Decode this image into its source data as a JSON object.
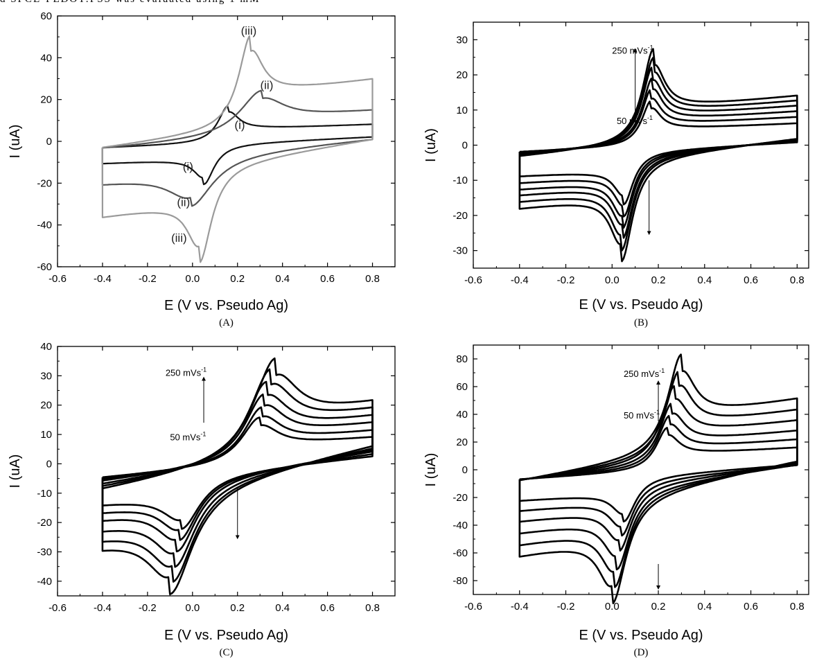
{
  "page_text": {
    "top_fragment": "d SPCE-PEDOT:PSS was evaluated using 1 mM"
  },
  "chart_data": [
    {
      "panel": "A",
      "caption": "(A)",
      "type": "line",
      "xlabel": "E (V vs. Pseudo Ag)",
      "ylabel": "I (uA)",
      "xlim": [
        -0.6,
        0.9
      ],
      "ylim": [
        -60,
        60
      ],
      "xticks": [
        -0.6,
        -0.4,
        -0.2,
        0.0,
        0.2,
        0.4,
        0.6,
        0.8
      ],
      "xtick_labels": [
        "-0.6",
        "-0.4",
        "-0.2",
        "0.0",
        "0.2",
        "0.4",
        "0.6",
        "0.8"
      ],
      "yticks": [
        -60,
        -40,
        -20,
        0,
        20,
        40,
        60
      ],
      "ytick_labels": [
        "-60",
        "-40",
        "-20",
        "0",
        "20",
        "40",
        "60"
      ],
      "series": [
        {
          "name": "(i)",
          "color": "#111111",
          "e_pa": 0.16,
          "e_pc": 0.05,
          "ip_a": 18,
          "ip_c": -19,
          "width": 0.055,
          "i_start": -7,
          "i_end": 4,
          "cap": 0.0,
          "slope": 9
        },
        {
          "name": "(ii)",
          "color": "#555555",
          "e_pa": 0.31,
          "e_pc": -0.01,
          "ip_a": 22,
          "ip_c": -24,
          "width": 0.12,
          "i_start": -15,
          "i_end": 8,
          "cap": 3,
          "slope": 10
        },
        {
          "name": "(iii)",
          "color": "#9a9a9a",
          "e_pa": 0.26,
          "e_pc": 0.03,
          "ip_a": 45,
          "ip_c": -46,
          "width": 0.065,
          "i_start": -23,
          "i_end": 15,
          "cap": 7,
          "slope": 12
        }
      ],
      "annotations": [
        {
          "text": "(iii)",
          "x": 0.25,
          "y": 51
        },
        {
          "text": "(ii)",
          "x": 0.33,
          "y": 25
        },
        {
          "text": "(i)",
          "x": 0.21,
          "y": 6
        },
        {
          "text": "(i)",
          "x": -0.02,
          "y": -14
        },
        {
          "text": "(ii)",
          "x": -0.04,
          "y": -31
        },
        {
          "text": "(iii)",
          "x": -0.06,
          "y": -48
        }
      ]
    },
    {
      "panel": "B",
      "caption": "(B)",
      "type": "line",
      "xlabel": "E (V vs. Pseudo Ag)",
      "ylabel": "I (uA)",
      "xlim": [
        -0.6,
        0.85
      ],
      "ylim": [
        -35,
        35
      ],
      "xticks": [
        -0.6,
        -0.4,
        -0.2,
        0.0,
        0.2,
        0.4,
        0.6,
        0.8
      ],
      "xtick_labels": [
        "-0.6",
        "-0.4",
        "-0.2",
        "0.0",
        "0.2",
        "0.4",
        "0.6",
        "0.8"
      ],
      "yticks": [
        -30,
        -20,
        -10,
        0,
        10,
        20,
        30
      ],
      "ytick_labels": [
        "-30",
        "-20",
        "-10",
        "0",
        "10",
        "20",
        "30"
      ],
      "scan_rates_label_high": "250 mVs",
      "scan_rates_label_low": "50 mVs",
      "superscript": "-1",
      "series": [
        {
          "color": "#000000",
          "e_pa": 0.17,
          "e_pc": 0.05,
          "ip_a": 13,
          "ip_c": -15,
          "width": 0.05,
          "i_start": -5.5,
          "i_end": 2.5,
          "cap": 0.5,
          "slope": 6
        },
        {
          "color": "#000000",
          "e_pa": 0.17,
          "e_pc": 0.05,
          "ip_a": 16,
          "ip_c": -18,
          "width": 0.05,
          "i_start": -6.5,
          "i_end": 3.5,
          "cap": 0.8,
          "slope": 6
        },
        {
          "color": "#000000",
          "e_pa": 0.175,
          "e_pc": 0.045,
          "ip_a": 19,
          "ip_c": -21,
          "width": 0.052,
          "i_start": -7.5,
          "i_end": 4.3,
          "cap": 1.0,
          "slope": 6
        },
        {
          "color": "#000000",
          "e_pa": 0.175,
          "e_pc": 0.045,
          "ip_a": 22,
          "ip_c": -23.5,
          "width": 0.054,
          "i_start": -8.5,
          "i_end": 5.0,
          "cap": 1.2,
          "slope": 6
        },
        {
          "color": "#000000",
          "e_pa": 0.18,
          "e_pc": 0.04,
          "ip_a": 24.5,
          "ip_c": -26.5,
          "width": 0.056,
          "i_start": -9.5,
          "i_end": 5.8,
          "cap": 1.4,
          "slope": 6
        },
        {
          "color": "#000000",
          "e_pa": 0.18,
          "e_pc": 0.04,
          "ip_a": 27,
          "ip_c": -29,
          "width": 0.058,
          "i_start": -11,
          "i_end": 6.5,
          "cap": 1.6,
          "slope": 6
        }
      ],
      "arrow_up": {
        "x": 0.1,
        "y1": 5,
        "y2": 27
      },
      "arrow_down": {
        "x": 0.16,
        "y1": -10,
        "y2": -25
      },
      "label_high_pos": {
        "x": 0.0,
        "y": 26
      },
      "label_low_pos": {
        "x": 0.02,
        "y": 6
      }
    },
    {
      "panel": "C",
      "caption": "(C)",
      "type": "line",
      "xlabel": "E (V vs. Pseudo Ag)",
      "ylabel": "I (uA)",
      "xlim": [
        -0.6,
        0.9
      ],
      "ylim": [
        -45,
        40
      ],
      "xticks": [
        -0.6,
        -0.4,
        -0.2,
        0.0,
        0.2,
        0.4,
        0.6,
        0.8
      ],
      "xtick_labels": [
        "-0.6",
        "-0.4",
        "-0.2",
        "0.0",
        "0.2",
        "0.4",
        "0.6",
        "0.8"
      ],
      "yticks": [
        -40,
        -30,
        -20,
        -10,
        0,
        10,
        20,
        30,
        40
      ],
      "ytick_labels": [
        "-40",
        "-30",
        "-20",
        "-10",
        "0",
        "10",
        "20",
        "30",
        "40"
      ],
      "scan_rates_label_high": "250 mVs",
      "scan_rates_label_low": "50 mVs",
      "superscript": "-1",
      "series": [
        {
          "color": "#000000",
          "e_pa": 0.3,
          "e_pc": -0.05,
          "ip_a": 16,
          "ip_c": -18,
          "width": 0.1,
          "i_start": -12,
          "i_end": 6,
          "cap": 0.5,
          "slope": 9
        },
        {
          "color": "#000000",
          "e_pa": 0.31,
          "e_pc": -0.06,
          "ip_a": 19,
          "ip_c": -21,
          "width": 0.1,
          "i_start": -14,
          "i_end": 8,
          "cap": 0.8,
          "slope": 9
        },
        {
          "color": "#000000",
          "e_pa": 0.32,
          "e_pc": -0.07,
          "ip_a": 23,
          "ip_c": -24,
          "width": 0.105,
          "i_start": -16,
          "i_end": 10,
          "cap": 1.0,
          "slope": 9
        },
        {
          "color": "#000000",
          "e_pa": 0.33,
          "e_pc": -0.08,
          "ip_a": 27,
          "ip_c": -28,
          "width": 0.11,
          "i_start": -19,
          "i_end": 11.5,
          "cap": 1.2,
          "slope": 9
        },
        {
          "color": "#000000",
          "e_pa": 0.35,
          "e_pc": -0.09,
          "ip_a": 31,
          "ip_c": -32,
          "width": 0.115,
          "i_start": -21.5,
          "i_end": 13,
          "cap": 1.4,
          "slope": 9
        },
        {
          "color": "#000000",
          "e_pa": 0.37,
          "e_pc": -0.1,
          "ip_a": 34,
          "ip_c": -35,
          "width": 0.12,
          "i_start": -24,
          "i_end": 15,
          "cap": 1.6,
          "slope": 9
        }
      ],
      "arrow_up": {
        "x": 0.05,
        "y1": 14,
        "y2": 29
      },
      "arrow_down": {
        "x": 0.2,
        "y1": -8,
        "y2": -25
      },
      "label_high_pos": {
        "x": -0.12,
        "y": 30
      },
      "label_low_pos": {
        "x": -0.1,
        "y": 8
      }
    },
    {
      "panel": "D",
      "caption": "(D)",
      "type": "line",
      "xlabel": "E (V vs. Pseudo Ag)",
      "ylabel": "I (uA)",
      "xlim": [
        -0.6,
        0.85
      ],
      "ylim": [
        -90,
        90
      ],
      "xticks": [
        -0.6,
        -0.4,
        -0.2,
        0.0,
        0.2,
        0.4,
        0.6,
        0.8
      ],
      "xtick_labels": [
        "-0.6",
        "-0.4",
        "-0.2",
        "0.0",
        "0.2",
        "0.4",
        "0.6",
        "0.8"
      ],
      "yticks": [
        -80,
        -60,
        -40,
        -20,
        0,
        20,
        40,
        60,
        80
      ],
      "ytick_labels": [
        "-80",
        "-60",
        "-40",
        "-20",
        "0",
        "20",
        "40",
        "60",
        "80"
      ],
      "scan_rates_label_high": "250 mVs",
      "scan_rates_label_low": "50 mVs",
      "superscript": "-1",
      "series": [
        {
          "color": "#000000",
          "e_pa": 0.24,
          "e_pc": 0.05,
          "ip_a": 31,
          "ip_c": -32,
          "width": 0.06,
          "i_start": -18,
          "i_end": 9,
          "cap": 1,
          "slope": 10
        },
        {
          "color": "#000000",
          "e_pa": 0.25,
          "e_pc": 0.04,
          "ip_a": 38,
          "ip_c": -39,
          "width": 0.062,
          "i_start": -23,
          "i_end": 12,
          "cap": 3,
          "slope": 10
        },
        {
          "color": "#000000",
          "e_pa": 0.26,
          "e_pc": 0.03,
          "ip_a": 45,
          "ip_c": -47,
          "width": 0.065,
          "i_start": -28,
          "i_end": 16,
          "cap": 5,
          "slope": 10
        },
        {
          "color": "#000000",
          "e_pa": 0.27,
          "e_pc": 0.02,
          "ip_a": 55,
          "ip_c": -57,
          "width": 0.068,
          "i_start": -33,
          "i_end": 20,
          "cap": 7,
          "slope": 10
        },
        {
          "color": "#000000",
          "e_pa": 0.29,
          "e_pc": 0.01,
          "ip_a": 63,
          "ip_c": -67,
          "width": 0.07,
          "i_start": -38,
          "i_end": 26,
          "cap": 9,
          "slope": 10
        },
        {
          "color": "#000000",
          "e_pa": 0.3,
          "e_pc": 0.0,
          "ip_a": 72,
          "ip_c": -76,
          "width": 0.072,
          "i_start": -43,
          "i_end": 32,
          "cap": 11,
          "slope": 10
        }
      ],
      "arrow_up": {
        "x": 0.2,
        "y1": 35,
        "y2": 63
      },
      "arrow_down": {
        "x": 0.2,
        "y1": -68,
        "y2": -85
      },
      "label_high_pos": {
        "x": 0.05,
        "y": 67
      },
      "label_low_pos": {
        "x": 0.05,
        "y": 37
      }
    }
  ]
}
